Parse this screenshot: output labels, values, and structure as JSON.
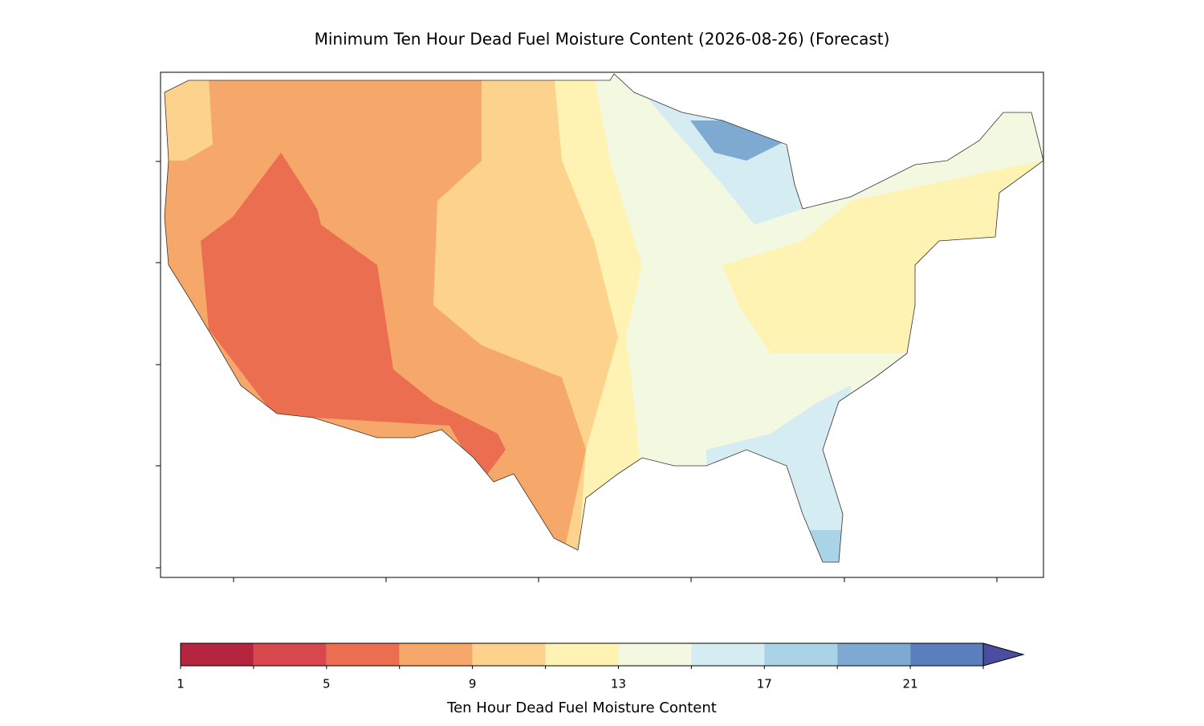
{
  "title": "Minimum Ten Hour Dead Fuel Moisture Content (2026-08-26) (Forecast)",
  "colorbar": {
    "label": "Ten Hour Dead Fuel Moisture Content",
    "levels": [
      1,
      3,
      5,
      7,
      9,
      11,
      13,
      15,
      17,
      19,
      21,
      23
    ],
    "colors": [
      "#b5253f",
      "#d7474b",
      "#ec6e51",
      "#f6a86a",
      "#fdd28c",
      "#fef3b2",
      "#f3f9e1",
      "#d5ecf3",
      "#aad3e7",
      "#7eaad2",
      "#5b7fbd"
    ],
    "extend_color": "#4b4d9e",
    "ticks": [
      1,
      5,
      9,
      13,
      17,
      21
    ]
  }
}
